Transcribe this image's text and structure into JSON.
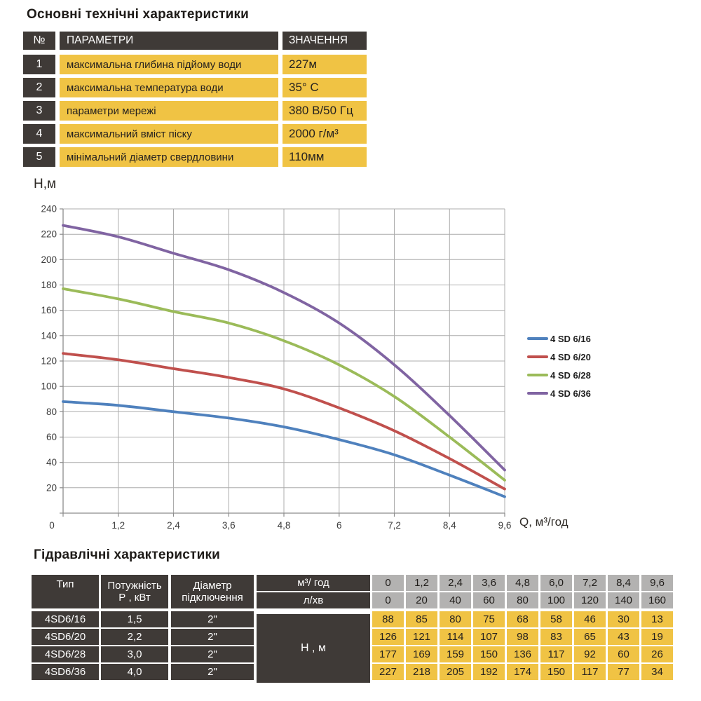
{
  "top": {
    "title": "Основні технічні характеристики",
    "table": {
      "header": {
        "num": "№",
        "param": "ПАРАМЕТРИ",
        "value": "ЗНАЧЕННЯ"
      },
      "rows": [
        {
          "num": "1",
          "param": "максимальна глибина підйому води",
          "value": "227м"
        },
        {
          "num": "2",
          "param": "максимальна температура води",
          "value": "35° С"
        },
        {
          "num": "3",
          "param": "параметри мережі",
          "value": "380 В/50 Гц"
        },
        {
          "num": "4",
          "param": "максимальний вміст піску",
          "value": "2000 г/м³"
        },
        {
          "num": "5",
          "param": "мінімальний діаметр свердловини",
          "value": "110мм"
        }
      ]
    }
  },
  "chart_data": {
    "type": "line",
    "x": [
      0,
      1.2,
      2.4,
      3.6,
      4.8,
      6,
      7.2,
      8.4,
      9.6
    ],
    "xtick_labels": [
      "0",
      "1,2",
      "2,4",
      "3,6",
      "4,8",
      "6",
      "7,2",
      "8,4",
      "9,6"
    ],
    "ylabel": "H,м",
    "xlabel": "Q,  м³/год",
    "ylim": [
      0,
      240
    ],
    "ytick_step": 20,
    "grid": true,
    "legend_position": "right",
    "series": [
      {
        "name": "4 SD 6/16",
        "color": "#4F81BD",
        "values": [
          88,
          85,
          80,
          75,
          68,
          58,
          46,
          30,
          13
        ]
      },
      {
        "name": "4 SD 6/20",
        "color": "#C0504D",
        "values": [
          126,
          121,
          114,
          107,
          98,
          83,
          65,
          43,
          19
        ]
      },
      {
        "name": "4 SD 6/28",
        "color": "#9BBB59",
        "values": [
          177,
          169,
          159,
          150,
          136,
          117,
          92,
          60,
          26
        ]
      },
      {
        "name": "4 SD 6/36",
        "color": "#8064A2",
        "values": [
          227,
          218,
          205,
          192,
          174,
          150,
          117,
          77,
          34
        ]
      }
    ]
  },
  "hydraulic": {
    "title": "Гідравлічні характеристики",
    "header": {
      "type": "Тип",
      "power_l1": "Потужність",
      "power_l2": "Р , кВт",
      "diam_l1": "Діаметр",
      "diam_l2": "підключення",
      "flow_m3": "м³/ год",
      "flow_l": "л/хв",
      "head": "Н , м"
    },
    "flow_m3_values": [
      "0",
      "1,2",
      "2,4",
      "3,6",
      "4,8",
      "6,0",
      "7,2",
      "8,4",
      "9,6"
    ],
    "flow_l_values": [
      "0",
      "20",
      "40",
      "60",
      "80",
      "100",
      "120",
      "140",
      "160"
    ],
    "rows": [
      {
        "type": "4SD6/16",
        "power": "1,5",
        "diam": "2\"",
        "heads": [
          "88",
          "85",
          "80",
          "75",
          "68",
          "58",
          "46",
          "30",
          "13"
        ]
      },
      {
        "type": "4SD6/20",
        "power": "2,2",
        "diam": "2\"",
        "heads": [
          "126",
          "121",
          "114",
          "107",
          "98",
          "83",
          "65",
          "43",
          "19"
        ]
      },
      {
        "type": "4SD6/28",
        "power": "3,0",
        "diam": "2\"",
        "heads": [
          "177",
          "169",
          "159",
          "150",
          "136",
          "117",
          "92",
          "60",
          "26"
        ]
      },
      {
        "type": "4SD6/36",
        "power": "4,0",
        "diam": "2\"",
        "heads": [
          "227",
          "218",
          "205",
          "192",
          "174",
          "150",
          "117",
          "77",
          "34"
        ]
      }
    ]
  },
  "colors": {
    "dark_cell": "#3F3A37",
    "yellow_cell": "#F0C344",
    "gray_cell": "#B3B2B1",
    "gridline": "#ACACAC",
    "axis": "#8C8C8C"
  }
}
